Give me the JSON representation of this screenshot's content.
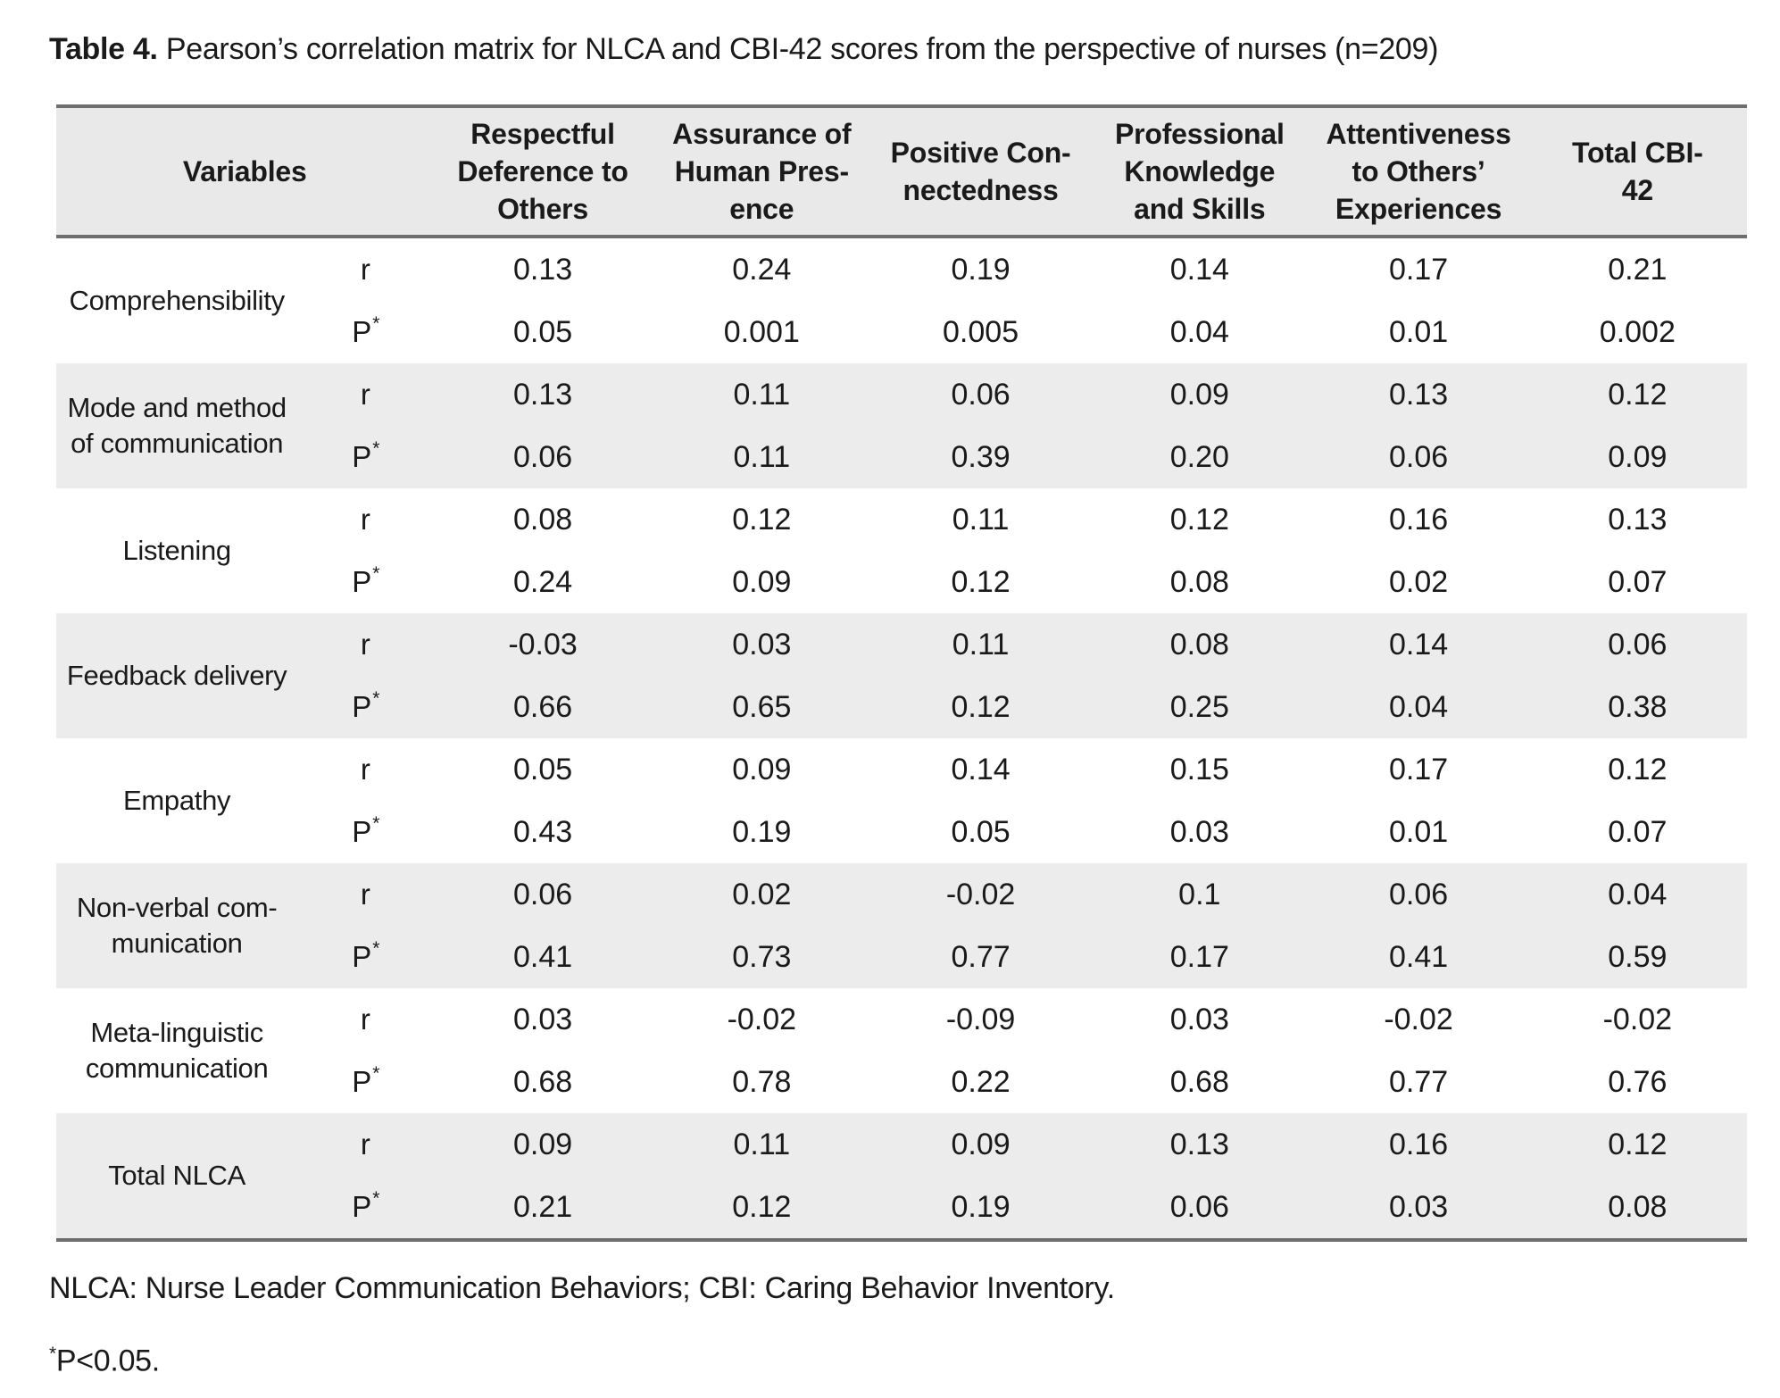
{
  "title": {
    "prefix": "Table 4.",
    "text": " Pearson’s correlation matrix for NLCA and CBI-42 scores from the perspective of nurses (n=209)"
  },
  "table": {
    "header": {
      "variables": "Variables",
      "columns": [
        "Respectful\nDeference to\nOthers",
        "Assurance of\nHuman Pres-\nence",
        "Positive Con-\nnectedness",
        "Professional\nKnowledge\nand Skills",
        "Attentiveness\nto Others’\nExperiences",
        "Total CBI-\n42"
      ]
    },
    "stat": {
      "r_label": "r",
      "p_label": "P",
      "p_superscript": "*"
    },
    "groups": [
      {
        "variable": "Comprehensibility",
        "r": [
          "0.13",
          "0.24",
          "0.19",
          "0.14",
          "0.17",
          "0.21"
        ],
        "p": [
          "0.05",
          "0.001",
          "0.005",
          "0.04",
          "0.01",
          "0.002"
        ]
      },
      {
        "variable": "Mode and method\nof communication",
        "r": [
          "0.13",
          "0.11",
          "0.06",
          "0.09",
          "0.13",
          "0.12"
        ],
        "p": [
          "0.06",
          "0.11",
          "0.39",
          "0.20",
          "0.06",
          "0.09"
        ]
      },
      {
        "variable": "Listening",
        "r": [
          "0.08",
          "0.12",
          "0.11",
          "0.12",
          "0.16",
          "0.13"
        ],
        "p": [
          "0.24",
          "0.09",
          "0.12",
          "0.08",
          "0.02",
          "0.07"
        ]
      },
      {
        "variable": "Feedback delivery",
        "r": [
          "-0.03",
          "0.03",
          "0.11",
          "0.08",
          "0.14",
          "0.06"
        ],
        "p": [
          "0.66",
          "0.65",
          "0.12",
          "0.25",
          "0.04",
          "0.38"
        ]
      },
      {
        "variable": "Empathy",
        "r": [
          "0.05",
          "0.09",
          "0.14",
          "0.15",
          "0.17",
          "0.12"
        ],
        "p": [
          "0.43",
          "0.19",
          "0.05",
          "0.03",
          "0.01",
          "0.07"
        ]
      },
      {
        "variable": "Non-verbal com-\nmunication",
        "r": [
          "0.06",
          "0.02",
          "-0.02",
          "0.1",
          "0.06",
          "0.04"
        ],
        "p": [
          "0.41",
          "0.73",
          "0.77",
          "0.17",
          "0.41",
          "0.59"
        ]
      },
      {
        "variable": "Meta-linguistic\ncommunication",
        "r": [
          "0.03",
          "-0.02",
          "-0.09",
          "0.03",
          "-0.02",
          "-0.02"
        ],
        "p": [
          "0.68",
          "0.78",
          "0.22",
          "0.68",
          "0.77",
          "0.76"
        ]
      },
      {
        "variable": "Total NLCA",
        "r": [
          "0.09",
          "0.11",
          "0.09",
          "0.13",
          "0.16",
          "0.12"
        ],
        "p": [
          "0.21",
          "0.12",
          "0.19",
          "0.06",
          "0.03",
          "0.08"
        ]
      }
    ]
  },
  "footnotes": {
    "abbreviations": "NLCA: Nurse Leader Communication Behaviors; CBI: Caring Behavior Inventory.",
    "significance_superscript": "*",
    "significance": "P<0.05."
  },
  "colors": {
    "header_bg": "#e9e9e9",
    "stripe_bg": "#ececec",
    "border": "#6e6e6e",
    "text": "#1a1a1a"
  }
}
